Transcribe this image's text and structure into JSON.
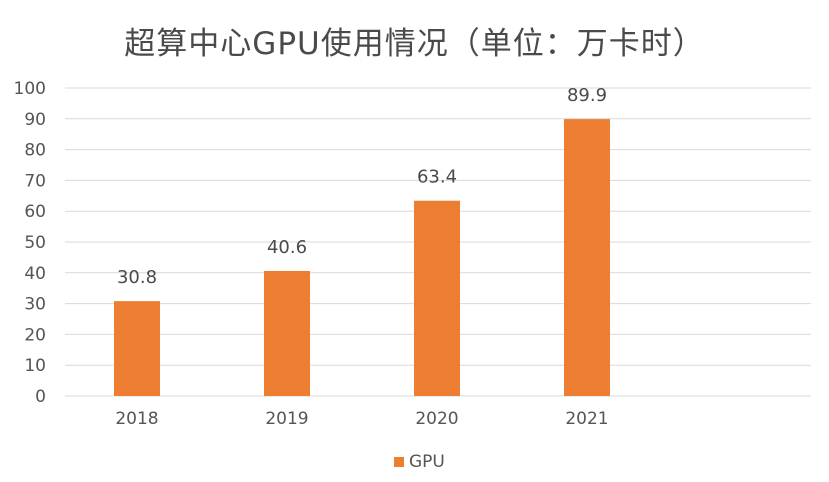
{
  "chart_data": {
    "type": "bar",
    "title": "超算中心GPU使用情况（单位：万卡时）",
    "categories": [
      "2018",
      "2019",
      "2020",
      "2021"
    ],
    "series": [
      {
        "name": "GPU",
        "values": [
          30.8,
          40.6,
          63.4,
          89.9
        ],
        "color": "#ED7D31"
      }
    ],
    "data_labels": [
      "30.8",
      "40.6",
      "63.4",
      "89.9"
    ],
    "y_ticks": [
      "0",
      "10",
      "20",
      "30",
      "40",
      "50",
      "60",
      "70",
      "80",
      "90",
      "100"
    ],
    "ylim": [
      0,
      100
    ],
    "xlabel": "",
    "ylabel": "",
    "grid": true,
    "legend_position": "bottom",
    "gridline_color": "#D9D9D9"
  }
}
